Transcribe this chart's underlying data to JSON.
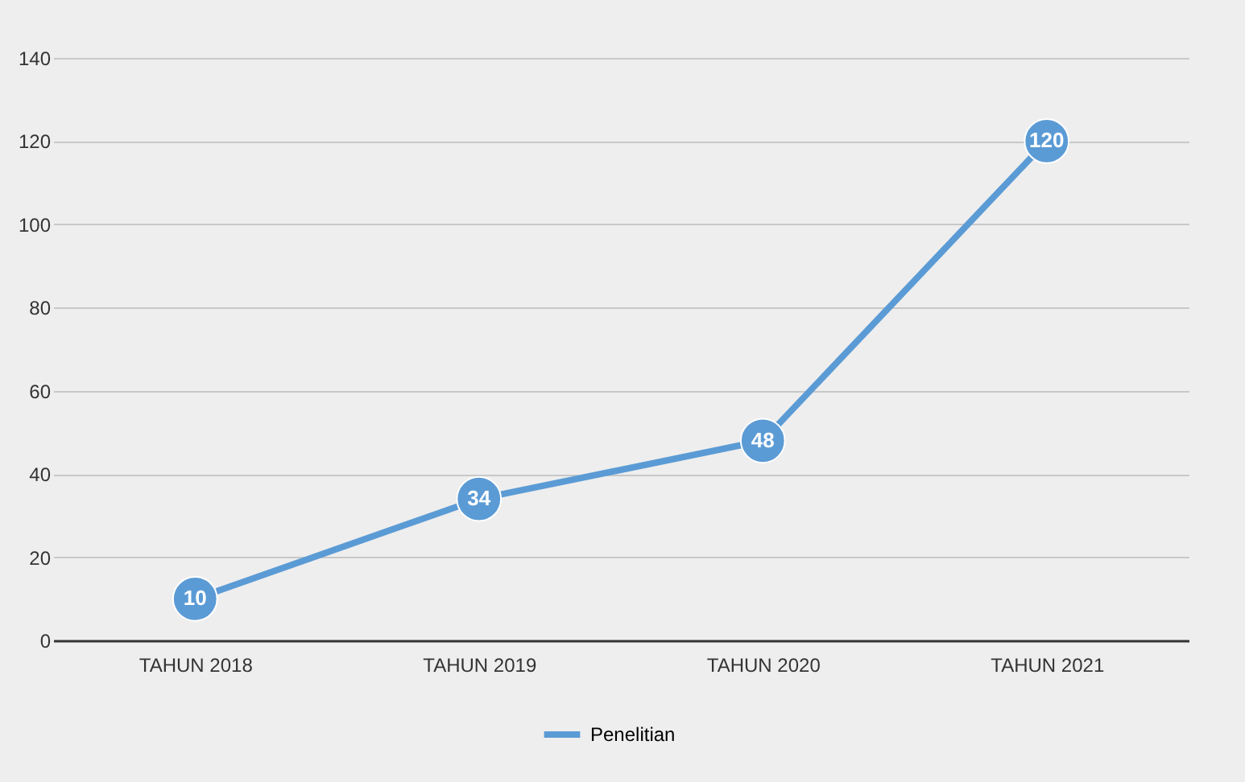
{
  "chart_data": {
    "type": "line",
    "categories": [
      "TAHUN 2018",
      "TAHUN 2019",
      "TAHUN 2020",
      "TAHUN 2021"
    ],
    "series": [
      {
        "name": "Penelitian",
        "color": "#5b9bd5",
        "values": [
          10,
          34,
          48,
          120
        ]
      }
    ],
    "ylim": [
      0,
      140
    ],
    "yticks": [
      0,
      20,
      40,
      60,
      80,
      100,
      120,
      140
    ],
    "grid": "y",
    "legend": "bottom",
    "marker": "circle",
    "line_style": "solid",
    "data_labels": true
  }
}
